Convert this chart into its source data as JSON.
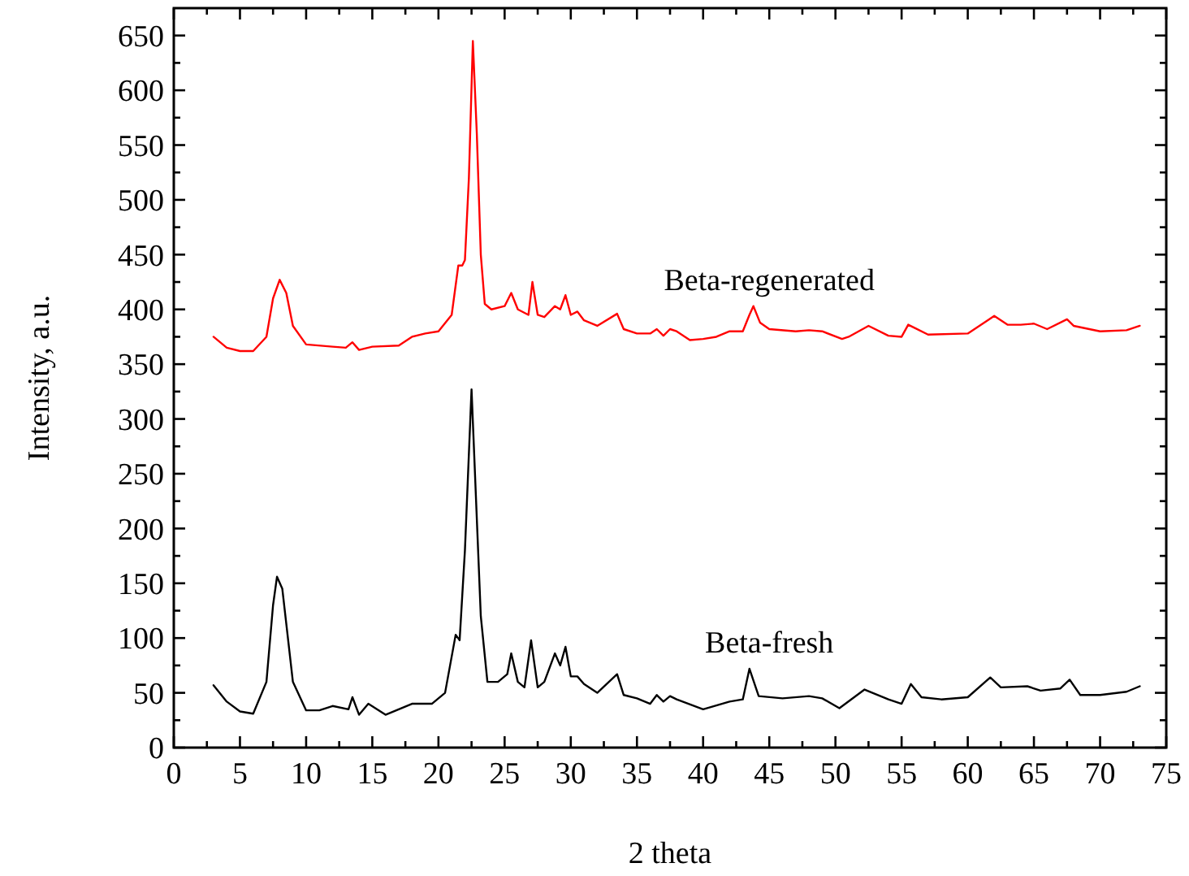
{
  "chart_data": {
    "type": "line",
    "xlabel": "2 theta",
    "ylabel": "Intensity, a.u.",
    "xlim": [
      0,
      75
    ],
    "ylim": [
      0,
      675
    ],
    "xticks": [
      0,
      {
        "value": 2.5,
        "label": null
      },
      5,
      {
        "value": 7.5,
        "label": null
      },
      10,
      {
        "value": 12.5,
        "label": null
      },
      15,
      {
        "value": 17.5,
        "label": null
      },
      20,
      {
        "value": 22.5,
        "label": null
      },
      25,
      {
        "value": 27.5,
        "label": null
      },
      30,
      {
        "value": 32.5,
        "label": null
      },
      35,
      {
        "value": 37.5,
        "label": null
      },
      40,
      {
        "value": 42.5,
        "label": null
      },
      45,
      {
        "value": 47.5,
        "label": null
      },
      50,
      {
        "value": 52.5,
        "label": null
      },
      55,
      {
        "value": 57.5,
        "label": null
      },
      60,
      {
        "value": 62.5,
        "label": null
      },
      65,
      {
        "value": 67.5,
        "label": null
      },
      70,
      {
        "value": 72.5,
        "label": null
      },
      75
    ],
    "yticks": [
      0,
      {
        "value": 25,
        "label": null
      },
      50,
      {
        "value": 75,
        "label": null
      },
      100,
      {
        "value": 125,
        "label": null
      },
      150,
      {
        "value": 175,
        "label": null
      },
      200,
      {
        "value": 225,
        "label": null
      },
      250,
      {
        "value": 275,
        "label": null
      },
      300,
      {
        "value": 325,
        "label": null
      },
      350,
      {
        "value": 375,
        "label": null
      },
      400,
      {
        "value": 425,
        "label": null
      },
      450,
      {
        "value": 475,
        "label": null
      },
      500,
      {
        "value": 525,
        "label": null
      },
      550,
      {
        "value": 575,
        "label": null
      },
      600,
      {
        "value": 625,
        "label": null
      },
      650
    ],
    "grid": false,
    "legend": false,
    "marker": "none",
    "line_style": "solid",
    "series": [
      {
        "name": "Beta-regenerated",
        "color": "#ff0000",
        "x": [
          3,
          4,
          5,
          6,
          7,
          7.5,
          8,
          8.5,
          9,
          10,
          12,
          13,
          13.5,
          14,
          15,
          17,
          18,
          19,
          20,
          21,
          21.5,
          21.8,
          22,
          22.3,
          22.6,
          22.9,
          23.2,
          23.5,
          24,
          25,
          25.5,
          26,
          26.8,
          27.1,
          27.5,
          28,
          28.8,
          29.2,
          29.6,
          30,
          30.5,
          31,
          32,
          33.5,
          34,
          35,
          36,
          36.5,
          37,
          37.5,
          38,
          39,
          40,
          41,
          42,
          43,
          43.5,
          43.8,
          44.3,
          45,
          47,
          48,
          49,
          50.5,
          51,
          52.5,
          54,
          55,
          55.5,
          56,
          57,
          60,
          61.5,
          62,
          63,
          64,
          65,
          66,
          67.5,
          68,
          70,
          72,
          73
        ],
        "values": [
          375,
          365,
          362,
          362,
          375,
          410,
          427,
          415,
          385,
          368,
          366,
          365,
          370,
          363,
          366,
          367,
          375,
          378,
          380,
          395,
          440,
          440,
          445,
          520,
          645,
          560,
          450,
          405,
          400,
          403,
          415,
          400,
          395,
          425,
          395,
          393,
          403,
          400,
          413,
          395,
          398,
          390,
          385,
          396,
          382,
          378,
          378,
          382,
          376,
          382,
          380,
          372,
          373,
          375,
          380,
          380,
          395,
          403,
          388,
          382,
          380,
          381,
          380,
          373,
          375,
          385,
          376,
          375,
          386,
          383,
          377,
          378,
          390,
          394,
          386,
          386,
          387,
          382,
          391,
          385,
          380,
          381,
          385
        ]
      },
      {
        "name": "Beta-fresh",
        "color": "#000000",
        "x": [
          3,
          4,
          5,
          6,
          7,
          7.5,
          7.8,
          8.2,
          9,
          10,
          11,
          12,
          13.2,
          13.5,
          14,
          14.7,
          16,
          18,
          19.5,
          20.5,
          21.3,
          21.6,
          22,
          22.5,
          23.2,
          23.7,
          24.5,
          25.2,
          25.5,
          26,
          26.5,
          27,
          27.5,
          28,
          28.8,
          29.2,
          29.6,
          30,
          30.5,
          31,
          32,
          33.5,
          34,
          35,
          36,
          36.5,
          37,
          37.5,
          38,
          40,
          42,
          43,
          43.5,
          44.2,
          46,
          48,
          49,
          50.3,
          52.2,
          54,
          55,
          55.7,
          56.5,
          58,
          60,
          61.7,
          62.5,
          64.5,
          65.5,
          67,
          67.7,
          68.5,
          70,
          72,
          73
        ],
        "values": [
          57,
          42,
          33,
          31,
          60,
          130,
          156,
          145,
          60,
          34,
          34,
          38,
          35,
          46,
          30,
          40,
          30,
          40,
          40,
          50,
          103,
          98,
          180,
          327,
          120,
          60,
          60,
          67,
          86,
          60,
          55,
          98,
          55,
          60,
          86,
          75,
          92,
          65,
          65,
          58,
          50,
          67,
          48,
          45,
          40,
          48,
          42,
          47,
          44,
          35,
          42,
          44,
          72,
          47,
          45,
          47,
          45,
          36,
          53,
          44,
          40,
          58,
          46,
          44,
          46,
          64,
          55,
          56,
          52,
          54,
          62,
          48,
          48,
          51,
          56
        ]
      }
    ]
  }
}
